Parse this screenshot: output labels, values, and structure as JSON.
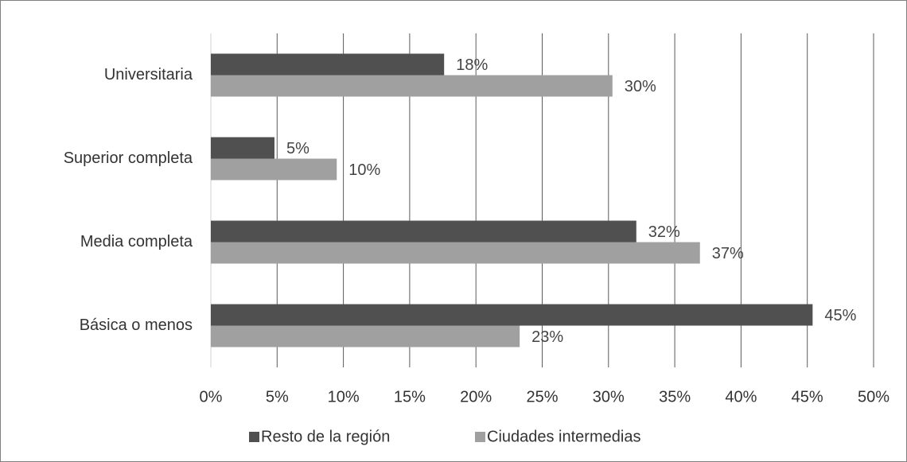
{
  "chart_data": {
    "type": "hbar",
    "categories": [
      "Universitaria",
      "Superior completa",
      "Media completa",
      "Básica o menos"
    ],
    "series": [
      {
        "name": "Resto de la región",
        "color": "#505050",
        "values": [
          17.6,
          4.8,
          32.1,
          45.4
        ],
        "value_labels": [
          "18%",
          "5%",
          "32%",
          "45%"
        ]
      },
      {
        "name": "Ciudades intermedias",
        "color": "#a0a0a0",
        "values": [
          30.3,
          9.5,
          36.9,
          23.3
        ],
        "value_labels": [
          "30%",
          "10%",
          "37%",
          "23%"
        ]
      }
    ],
    "xlim": [
      0,
      50
    ],
    "xticks": [
      {
        "value": 0,
        "label": "0%"
      },
      {
        "value": 5,
        "label": "5%"
      },
      {
        "value": 10,
        "label": "10%"
      },
      {
        "value": 15,
        "label": "15%"
      },
      {
        "value": 20,
        "label": "20%"
      },
      {
        "value": 25,
        "label": "25%"
      },
      {
        "value": 30,
        "label": "30%"
      },
      {
        "value": 35,
        "label": "35%"
      },
      {
        "value": 40,
        "label": "40%"
      },
      {
        "value": 45,
        "label": "45%"
      },
      {
        "value": 50,
        "label": "50%"
      }
    ],
    "grid": true,
    "legend": "bottom"
  }
}
